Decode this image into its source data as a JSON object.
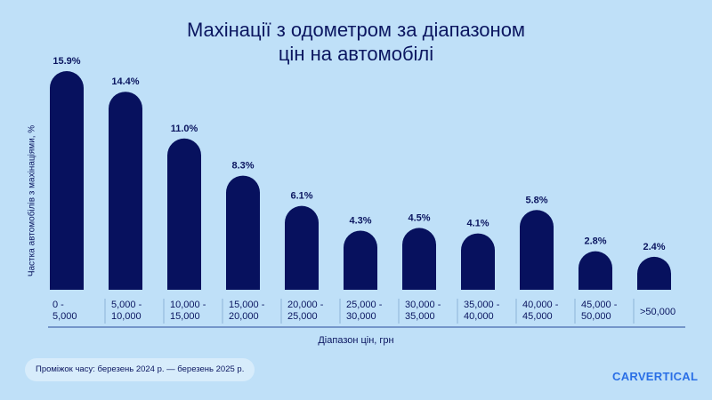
{
  "chart_data": {
    "type": "bar",
    "title_lines": [
      "Махінації з одометром за діапазоном",
      "цін на автомобілі"
    ],
    "xlabel": "Діапазон цін, грн",
    "ylabel": "Частка автомобілів з махінаціями, %",
    "categories": [
      [
        "0 -",
        "5,000"
      ],
      [
        "5,000 -",
        "10,000"
      ],
      [
        "10,000 -",
        "15,000"
      ],
      [
        "15,000 -",
        "20,000"
      ],
      [
        "20,000 -",
        "25,000"
      ],
      [
        "25,000 -",
        "30,000"
      ],
      [
        "30,000 -",
        "35,000"
      ],
      [
        "35,000 -",
        "40,000"
      ],
      [
        "40,000 -",
        "45,000"
      ],
      [
        "45,000 -",
        "50,000"
      ],
      [
        ">50,000"
      ]
    ],
    "values": [
      15.9,
      14.4,
      11.0,
      8.3,
      6.1,
      4.3,
      4.5,
      4.1,
      5.8,
      2.8,
      2.4
    ],
    "value_labels": [
      "15.9%",
      "14.4%",
      "11.0%",
      "8.3%",
      "6.1%",
      "4.3%",
      "4.5%",
      "4.1%",
      "5.8%",
      "2.8%",
      "2.4%"
    ],
    "ylim": [
      0,
      16
    ],
    "grid": false,
    "bar_color": "#07115e",
    "text_color": "#0b1660"
  },
  "footer": {
    "time_period": "Проміжок часу: березень 2024 р. — березень 2025 р."
  },
  "brand": {
    "logo_text": "CARVERTICAL",
    "color": "#2a6fe6"
  },
  "background_color": "#bfe0f8"
}
